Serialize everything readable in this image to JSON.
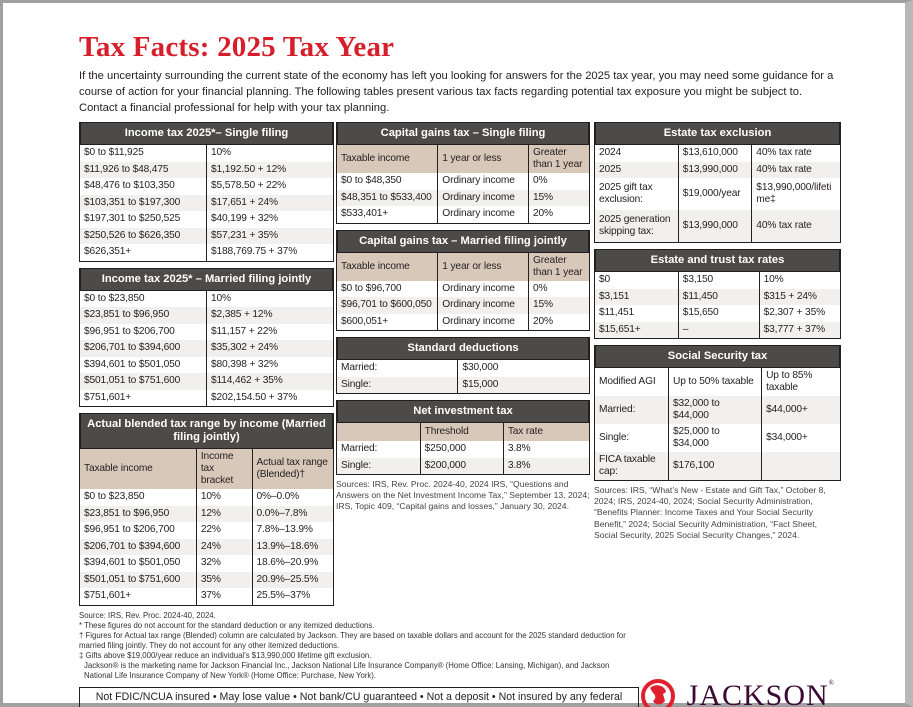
{
  "title": "Tax Facts: 2025 Tax Year",
  "intro": "If the uncertainty surrounding the current state of the economy has left you looking for answers for the 2025 tax year, you may need some guidance for a course of action for your financial planning. The following tables present various tax facts regarding potential tax exposure you might be subject to. Contact a financial professional for help with your tax planning.",
  "colors": {
    "title_red": "#d71e2b",
    "header_gray": "#4d4b4a",
    "column_header_tan": "#d8c8ba",
    "logo_purple": "#3b0a33"
  },
  "left": [
    {
      "title": "Income tax 2025*– Single filing",
      "rows": [
        [
          "$0 to $11,925",
          "10%"
        ],
        [
          "$11,926 to $48,475",
          "$1,192.50 + 12%"
        ],
        [
          "$48,476 to $103,350",
          "$5,578.50 + 22%"
        ],
        [
          "$103,351 to $197,300",
          "$17,651 + 24%"
        ],
        [
          "$197,301 to $250,525",
          "$40,199 + 32%"
        ],
        [
          "$250,526 to $626,350",
          "$57,231 + 35%"
        ],
        [
          "$626,351+",
          "$188,769.75 + 37%"
        ]
      ]
    },
    {
      "title": "Income tax 2025* – Married filing jointly",
      "rows": [
        [
          "$0 to $23,850",
          "10%"
        ],
        [
          "$23,851 to $96,950",
          "$2,385 + 12%"
        ],
        [
          "$96,951 to $206,700",
          "$11,157 + 22%"
        ],
        [
          "$206,701 to $394,600",
          "$35,302 + 24%"
        ],
        [
          "$394,601 to $501,050",
          "$80,398 + 32%"
        ],
        [
          "$501,051 to $751,600",
          "$114,462 + 35%"
        ],
        [
          "$751,601+",
          "$202,154.50 + 37%"
        ]
      ]
    },
    {
      "title": "Actual blended tax range by income (Married filing jointly)",
      "columns": [
        "Taxable income",
        "Income tax bracket",
        "Actual tax range (Blended)†"
      ],
      "rows": [
        [
          "$0 to $23,850",
          "10%",
          "0%–0.0%"
        ],
        [
          "$23,851 to $96,950",
          "12%",
          "0.0%–7.8%"
        ],
        [
          "$96,951 to $206,700",
          "22%",
          "7.8%–13.9%"
        ],
        [
          "$206,701 to $394,600",
          "24%",
          "13.9%–18.6%"
        ],
        [
          "$394,601 to $501,050",
          "32%",
          "18.6%–20.9%"
        ],
        [
          "$501,051 to $751,600",
          "35%",
          "20.9%–25.5%"
        ],
        [
          "$751,601+",
          "37%",
          "25.5%–37%"
        ]
      ]
    }
  ],
  "middle": [
    {
      "title": "Capital gains tax – Single filing",
      "columns": [
        "Taxable income",
        "1 year or less",
        "Greater than 1 year"
      ],
      "rows": [
        [
          "$0 to $48,350",
          "Ordinary income",
          "0%"
        ],
        [
          "$48,351 to $533,400",
          "Ordinary income",
          "15%"
        ],
        [
          "$533,401+",
          "Ordinary income",
          "20%"
        ]
      ]
    },
    {
      "title": "Capital gains tax – Married filing jointly",
      "columns": [
        "Taxable income",
        "1 year or less",
        "Greater than 1 year"
      ],
      "rows": [
        [
          "$0 to $96,700",
          "Ordinary income",
          "0%"
        ],
        [
          "$96,701 to $600,050",
          "Ordinary income",
          "15%"
        ],
        [
          "$600,051+",
          "Ordinary income",
          "20%"
        ]
      ]
    },
    {
      "title": "Standard deductions",
      "rows": [
        [
          "Married:",
          "$30,000"
        ],
        [
          "Single:",
          "$15,000"
        ]
      ]
    },
    {
      "title": "Net investment tax",
      "columns": [
        "",
        "Threshold",
        "Tax rate"
      ],
      "rows": [
        [
          "Married:",
          "$250,000",
          "3.8%"
        ],
        [
          "Single:",
          "$200,000",
          "3.8%"
        ]
      ]
    }
  ],
  "middle_sources": "Sources: IRS, Rev. Proc. 2024-40, 2024 IRS, “Questions and Answers on the Net Investment Income Tax,” September 13, 2024; IRS, Topic 409, “Capital gains and losses,” January 30, 2024.",
  "right": [
    {
      "title": "Estate tax exclusion",
      "rows": [
        [
          "2024",
          "$13,610,000",
          "40% tax rate"
        ],
        [
          "2025",
          "$13,990,000",
          "40% tax rate"
        ],
        [
          "2025 gift tax exclusion:",
          "$19,000/year",
          "$13,990,000/lifetime‡"
        ],
        [
          "2025 generation skipping tax:",
          "$13,990,000",
          "40% tax rate"
        ]
      ]
    },
    {
      "title": "Estate and trust tax rates",
      "rows": [
        [
          "$0",
          "$3,150",
          "10%"
        ],
        [
          "$3,151",
          "$11,450",
          "$315 + 24%"
        ],
        [
          "$11,451",
          "$15,650",
          "$2,307 + 35%"
        ],
        [
          "$15,651+",
          "–",
          "$3,777 + 37%"
        ]
      ]
    },
    {
      "title": "Social Security tax",
      "rows": [
        [
          "Modified AGI",
          "Up to 50% taxable",
          "Up to 85% taxable"
        ],
        [
          "Married:",
          "$32,000 to $44,000",
          "$44,000+"
        ],
        [
          "Single:",
          "$25,000 to $34,000",
          "$34,000+"
        ],
        [
          "FICA taxable cap:",
          "$176,100",
          ""
        ]
      ]
    }
  ],
  "right_sources": "Sources: IRS, “What’s New - Estate and Gift Tax,” October 8, 2024; IRS, 2024-40, 2024; Social Security Administration, “Benefits Planner: Income Taxes and Your Social Security Benefit,” 2024; Social Security Administration, “Fact Sheet, Social Security, 2025 Social Security Changes,” 2024.",
  "footnotes": [
    "Source: IRS, Rev. Proc. 2024-40, 2024.",
    "* These figures do not account for the standard deduction or any itemized deductions.",
    "† Figures for Actual tax range (Blended) column are calculated by Jackson. They are based on taxable dollars and account for the 2025 standard deduction for married filing jointly. They do not account for any other itemized deductions.",
    "‡ Gifts above $19,000/year reduce an individual’s $13,990,000 lifetime gift exclusion.",
    "Jackson® is the marketing name for Jackson Financial Inc., Jackson National Life Insurance Company® (Home Office: Lansing, Michigan), and Jackson National Life Insurance Company of New York® (Home Office: Purchase, New York)."
  ],
  "disclaimer": "Not FDIC/NCUA insured  •  May lose value  •  Not bank/CU guaranteed  •  Not a deposit  •  Not insured by any federal agency",
  "logo": {
    "text": "JACKSON",
    "mark": "®",
    "icon": "horse-head-icon"
  }
}
